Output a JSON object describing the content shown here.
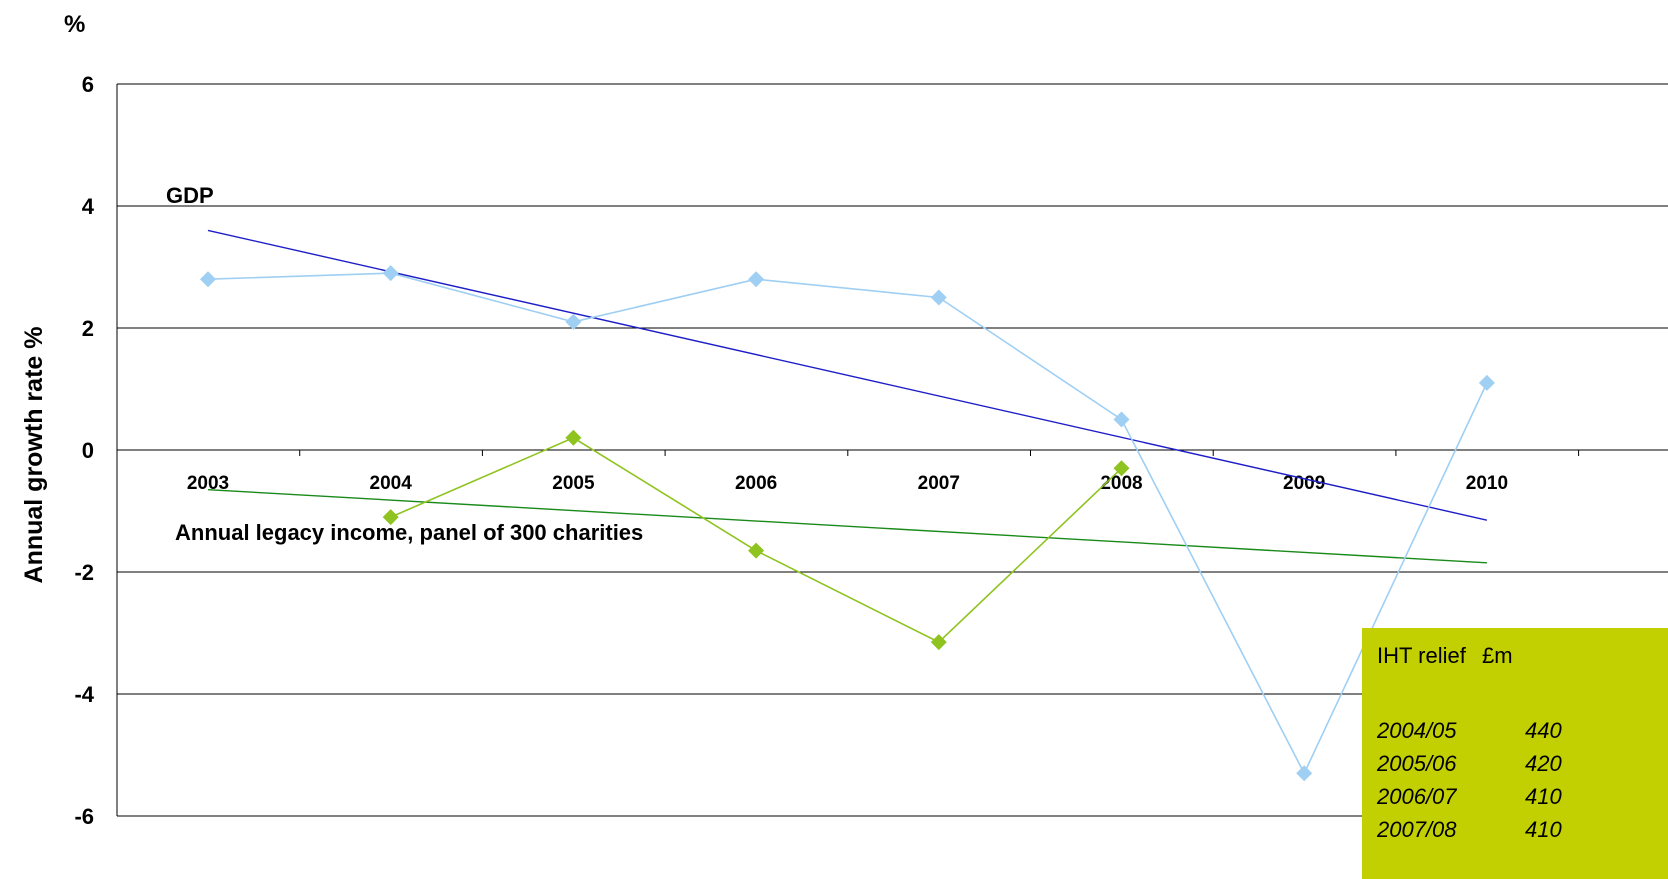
{
  "chart_data": {
    "type": "line",
    "unit_label": "%",
    "ylabel": "Annual growth rate %",
    "ylim": [
      -6,
      6
    ],
    "yticks": [
      "6",
      "4",
      "2",
      "0",
      "-2",
      "-4",
      "-6"
    ],
    "categories": [
      "2003",
      "2004",
      "2005",
      "2006",
      "2007",
      "2008",
      "2009",
      "2010"
    ],
    "series": [
      {
        "name": "GDP",
        "color": "#9fcff3",
        "values": [
          2.8,
          2.9,
          2.1,
          2.8,
          2.5,
          0.5,
          -5.3,
          1.1
        ]
      },
      {
        "name": "Annual legacy income, panel of 300 charities",
        "color": "#8fc31f",
        "values": [
          null,
          -1.1,
          0.2,
          -1.65,
          -3.15,
          -0.3,
          null,
          null
        ]
      }
    ],
    "trendlines": [
      {
        "series": "GDP",
        "color": "#1e1ec8",
        "start": 3.6,
        "end": -1.15
      },
      {
        "series": "Annual legacy income, panel of 300 charities",
        "color": "#1a8a1a",
        "start": -0.65,
        "end": -1.85
      }
    ],
    "annotations": {
      "gdp": "GDP",
      "legacy": "Annual legacy income, panel of 300 charities"
    },
    "grid": true,
    "legend": "none"
  },
  "iht_table": {
    "headers": [
      "IHT relief",
      "£m"
    ],
    "rows": [
      {
        "year": "2004/05",
        "value": "440"
      },
      {
        "year": "2005/06",
        "value": "420"
      },
      {
        "year": "2006/07",
        "value": "410"
      },
      {
        "year": "2007/08",
        "value": "410"
      }
    ],
    "bg_color": "#c2cf00"
  }
}
